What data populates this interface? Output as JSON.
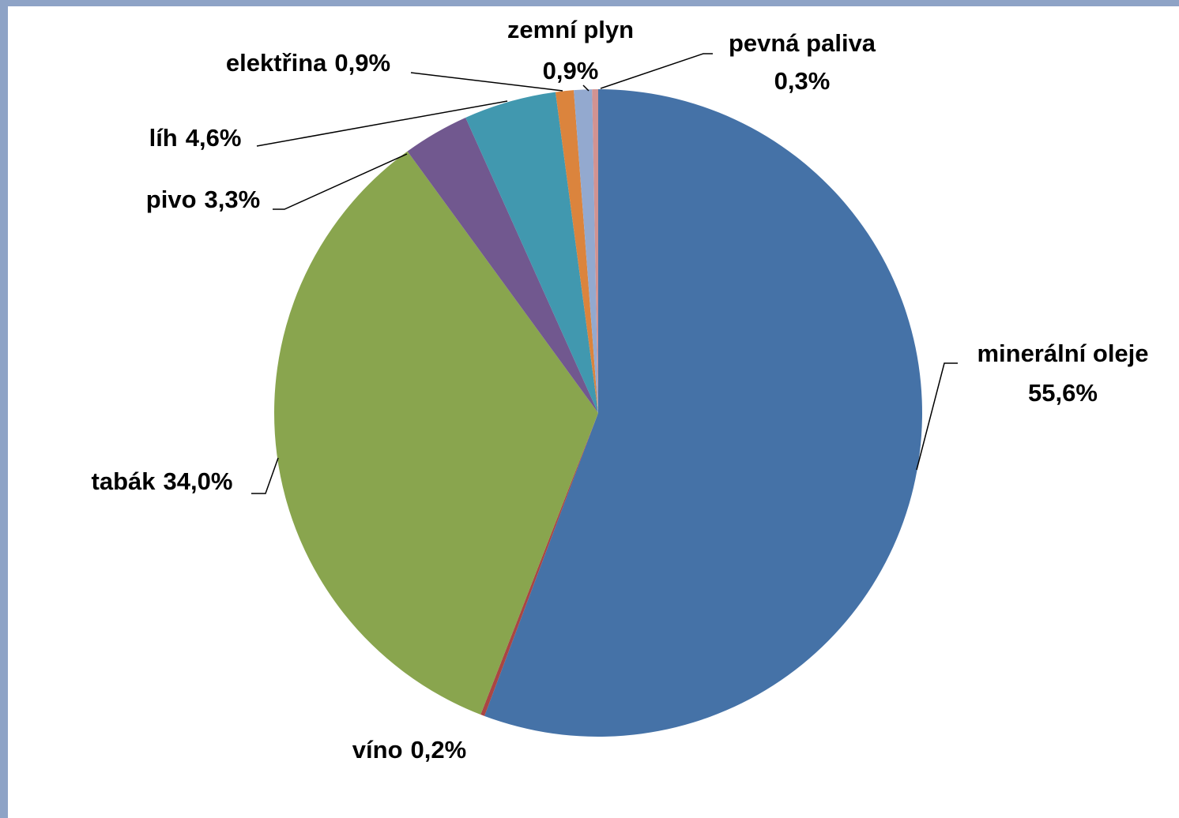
{
  "chart_data": {
    "type": "pie",
    "categories": [
      "minerální oleje",
      "víno",
      "tabák",
      "pivo",
      "líh",
      "elektřina",
      "zemní plyn",
      "pevná paliva"
    ],
    "values": [
      55.6,
      0.2,
      34.0,
      3.3,
      4.6,
      0.9,
      0.9,
      0.3
    ],
    "value_labels": [
      "55,6%",
      "0,2%",
      "34,0%",
      "3,3%",
      "4,6%",
      "0,9%",
      "0,9%",
      "0,3%"
    ],
    "colors": [
      "#4572a7",
      "#aa4643",
      "#89a54e",
      "#71588f",
      "#4198af",
      "#db843d",
      "#93a9cf",
      "#d19392"
    ]
  }
}
